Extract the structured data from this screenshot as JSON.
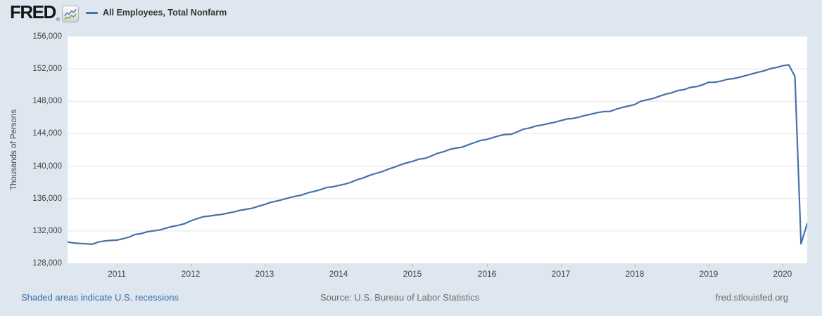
{
  "header": {
    "logo_text": "FRED",
    "registered_mark": "®",
    "legend": {
      "label": "All Employees, Total Nonfarm"
    }
  },
  "footer": {
    "recession_note": "Shaded areas indicate U.S. recessions",
    "source": "Source: U.S. Bureau of Labor Statistics",
    "site": "fred.stlouisfed.org"
  },
  "colors": {
    "page_background": "#dee7ef",
    "plot_background": "#ffffff",
    "line": "#4572a7",
    "gridline": "#e5e5e5",
    "footer_link": "#3a68a8",
    "footer_gray": "#6b6b6b",
    "logo_icon_blue": "#4a7ebb",
    "logo_icon_green": "#6aa84f"
  },
  "chart_data": {
    "type": "line",
    "title": "All Employees, Total Nonfarm",
    "ylabel": "Thousands of Persons",
    "xlabel": "",
    "frequency": "Monthly",
    "ylim": [
      128000,
      156000
    ],
    "grid": "horizontal",
    "legend_position": "top-left",
    "line_color": "#4572a7",
    "x_range": {
      "start": "2010-05",
      "end": "2020-05"
    },
    "y_ticks": [
      {
        "value": 128000,
        "label": "128,000"
      },
      {
        "value": 132000,
        "label": "132,000"
      },
      {
        "value": 136000,
        "label": "136,000"
      },
      {
        "value": 140000,
        "label": "140,000"
      },
      {
        "value": 144000,
        "label": "144,000"
      },
      {
        "value": 148000,
        "label": "148,000"
      },
      {
        "value": 152000,
        "label": "152,000"
      },
      {
        "value": 156000,
        "label": "156,000"
      }
    ],
    "x_ticks": [
      {
        "year": 2011,
        "label": "2011"
      },
      {
        "year": 2012,
        "label": "2012"
      },
      {
        "year": 2013,
        "label": "2013"
      },
      {
        "year": 2014,
        "label": "2014"
      },
      {
        "year": 2015,
        "label": "2015"
      },
      {
        "year": 2016,
        "label": "2016"
      },
      {
        "year": 2017,
        "label": "2017"
      },
      {
        "year": 2018,
        "label": "2018"
      },
      {
        "year": 2019,
        "label": "2019"
      },
      {
        "year": 2020,
        "label": "2020"
      }
    ],
    "x": [
      "2010-05",
      "2010-06",
      "2010-07",
      "2010-08",
      "2010-09",
      "2010-10",
      "2010-11",
      "2010-12",
      "2011-01",
      "2011-02",
      "2011-03",
      "2011-04",
      "2011-05",
      "2011-06",
      "2011-07",
      "2011-08",
      "2011-09",
      "2011-10",
      "2011-11",
      "2011-12",
      "2012-01",
      "2012-02",
      "2012-03",
      "2012-04",
      "2012-05",
      "2012-06",
      "2012-07",
      "2012-08",
      "2012-09",
      "2012-10",
      "2012-11",
      "2012-12",
      "2013-01",
      "2013-02",
      "2013-03",
      "2013-04",
      "2013-05",
      "2013-06",
      "2013-07",
      "2013-08",
      "2013-09",
      "2013-10",
      "2013-11",
      "2013-12",
      "2014-01",
      "2014-02",
      "2014-03",
      "2014-04",
      "2014-05",
      "2014-06",
      "2014-07",
      "2014-08",
      "2014-09",
      "2014-10",
      "2014-11",
      "2014-12",
      "2015-01",
      "2015-02",
      "2015-03",
      "2015-04",
      "2015-05",
      "2015-06",
      "2015-07",
      "2015-08",
      "2015-09",
      "2015-10",
      "2015-11",
      "2015-12",
      "2016-01",
      "2016-02",
      "2016-03",
      "2016-04",
      "2016-05",
      "2016-06",
      "2016-07",
      "2016-08",
      "2016-09",
      "2016-10",
      "2016-11",
      "2016-12",
      "2017-01",
      "2017-02",
      "2017-03",
      "2017-04",
      "2017-05",
      "2017-06",
      "2017-07",
      "2017-08",
      "2017-09",
      "2017-10",
      "2017-11",
      "2017-12",
      "2018-01",
      "2018-02",
      "2018-03",
      "2018-04",
      "2018-05",
      "2018-06",
      "2018-07",
      "2018-08",
      "2018-09",
      "2018-10",
      "2018-11",
      "2018-12",
      "2019-01",
      "2019-02",
      "2019-03",
      "2019-04",
      "2019-05",
      "2019-06",
      "2019-07",
      "2019-08",
      "2019-09",
      "2019-10",
      "2019-11",
      "2019-12",
      "2020-01",
      "2020-02",
      "2020-03",
      "2020-04",
      "2020-05"
    ],
    "values": [
      130639,
      130512,
      130451,
      130414,
      130362,
      130633,
      130756,
      130827,
      130869,
      131037,
      131249,
      131573,
      131675,
      131909,
      132011,
      132133,
      132354,
      132552,
      132697,
      132899,
      133245,
      133501,
      133744,
      133840,
      133950,
      134038,
      134198,
      134348,
      134548,
      134673,
      134813,
      135055,
      135261,
      135541,
      135702,
      135898,
      136110,
      136283,
      136434,
      136700,
      136880,
      137085,
      137359,
      137443,
      137611,
      137779,
      138012,
      138322,
      138552,
      138858,
      139093,
      139311,
      139604,
      139865,
      140152,
      140403,
      140592,
      140858,
      140957,
      141243,
      141574,
      141771,
      142073,
      142223,
      142331,
      142634,
      142903,
      143172,
      143288,
      143525,
      143751,
      143903,
      143946,
      144243,
      144568,
      144711,
      144960,
      145084,
      145248,
      145403,
      145612,
      145812,
      145885,
      146060,
      146268,
      146425,
      146614,
      146735,
      146753,
      147029,
      147245,
      147420,
      147596,
      148004,
      148180,
      148356,
      148624,
      148872,
      149050,
      149328,
      149436,
      149713,
      149809,
      150036,
      150349,
      150350,
      150497,
      150713,
      150798,
      150976,
      151170,
      151377,
      151585,
      151770,
      152031,
      152175,
      152389,
      152504,
      151090,
      130403,
      132912
    ]
  }
}
